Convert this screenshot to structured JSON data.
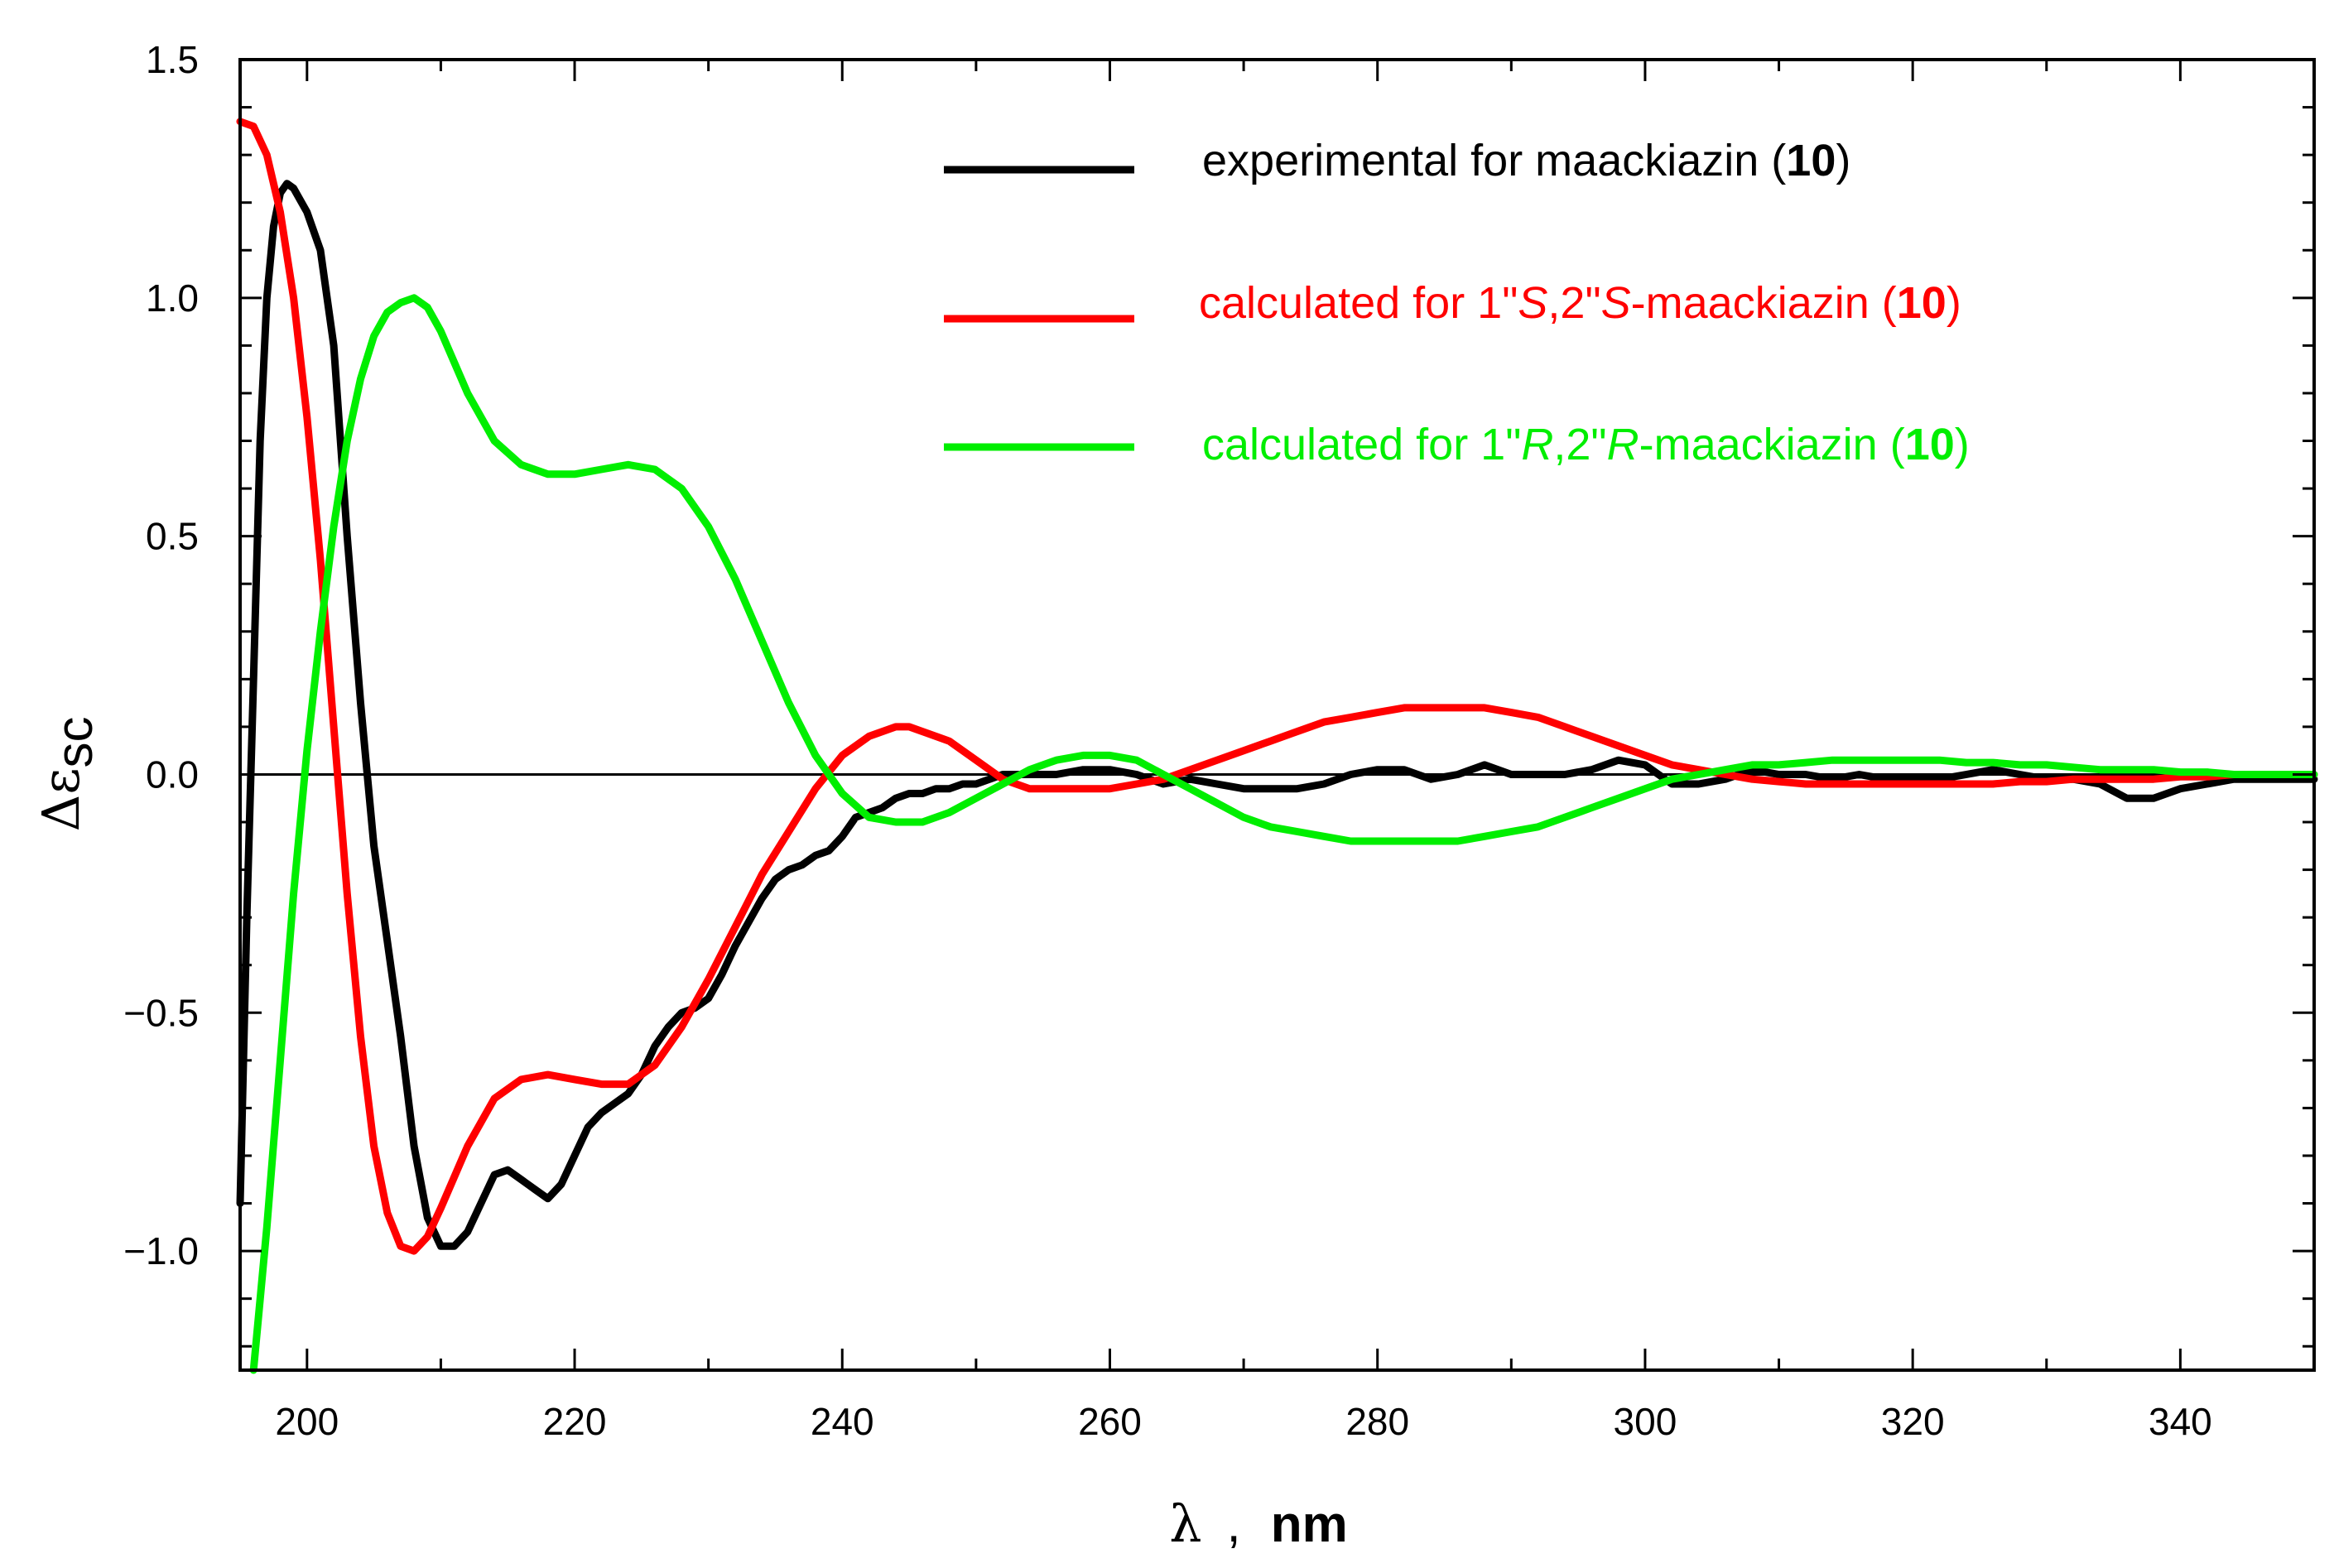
{
  "chart_data": {
    "type": "line",
    "title": "",
    "xlabel": {
      "symbol": "λ",
      "separator": ",",
      "unit": "nm"
    },
    "ylabel": {
      "symbol": "Δε",
      "subscript": "sc"
    },
    "xlim": [
      195,
      350
    ],
    "ylim": [
      -1.25,
      1.5
    ],
    "x_ticks": [
      200,
      220,
      240,
      260,
      280,
      300,
      320,
      340
    ],
    "x_tick_labels": [
      "200",
      "220",
      "240",
      "260",
      "280",
      "300",
      "320",
      "340"
    ],
    "y_ticks": [
      -1.0,
      -0.5,
      0.0,
      0.5,
      1.0,
      1.5
    ],
    "y_tick_labels": [
      "−1.0",
      "−0.5",
      "0.0",
      "0.5",
      "1.0",
      "1.5"
    ],
    "zero_line": true,
    "grid": false,
    "legend_position": "top-right",
    "series": [
      {
        "name": "experimental for maackiazin (10)",
        "legend": {
          "pre": "experimental for maackiazin (",
          "bold": "10",
          "post": ")"
        },
        "color": "#000000",
        "x": [
          195,
          195.5,
          196,
          196.5,
          197,
          197.5,
          198,
          198.5,
          199,
          200,
          201,
          202,
          203,
          204,
          205,
          206,
          207,
          208,
          209,
          210,
          211,
          212,
          213,
          214,
          215,
          216,
          217,
          218,
          219,
          220,
          221,
          222,
          223,
          224,
          225,
          226,
          227,
          228,
          229,
          230,
          231,
          232,
          233,
          234,
          235,
          236,
          237,
          238,
          239,
          240,
          241,
          242,
          243,
          244,
          245,
          246,
          247,
          248,
          249,
          250,
          252,
          254,
          256,
          258,
          260,
          262,
          264,
          266,
          268,
          270,
          272,
          274,
          276,
          278,
          280,
          282,
          284,
          286,
          288,
          290,
          292,
          294,
          296,
          298,
          300,
          302,
          304,
          306,
          308,
          310,
          312,
          314,
          316,
          318,
          320,
          322,
          324,
          326,
          328,
          330,
          332,
          334,
          336,
          338,
          340,
          342,
          344,
          346,
          348,
          350
        ],
        "y": [
          -0.9,
          -0.3,
          0.2,
          0.7,
          1.0,
          1.15,
          1.22,
          1.24,
          1.23,
          1.18,
          1.1,
          0.9,
          0.5,
          0.15,
          -0.15,
          -0.35,
          -0.55,
          -0.78,
          -0.93,
          -0.99,
          -0.99,
          -0.96,
          -0.9,
          -0.84,
          -0.83,
          -0.85,
          -0.87,
          -0.89,
          -0.86,
          -0.8,
          -0.74,
          -0.71,
          -0.69,
          -0.67,
          -0.63,
          -0.57,
          -0.53,
          -0.5,
          -0.49,
          -0.47,
          -0.42,
          -0.36,
          -0.31,
          -0.26,
          -0.22,
          -0.2,
          -0.19,
          -0.17,
          -0.16,
          -0.13,
          -0.09,
          -0.08,
          -0.07,
          -0.05,
          -0.04,
          -0.04,
          -0.03,
          -0.03,
          -0.02,
          -0.02,
          0.0,
          0.0,
          0.0,
          0.01,
          0.01,
          0.0,
          -0.02,
          -0.01,
          -0.02,
          -0.03,
          -0.03,
          -0.03,
          -0.02,
          0.0,
          0.01,
          0.01,
          -0.01,
          0.0,
          0.02,
          0.0,
          0.0,
          0.0,
          0.01,
          0.03,
          0.02,
          -0.02,
          -0.02,
          -0.01,
          0.01,
          0.0,
          0.0,
          -0.01,
          0.0,
          -0.01,
          -0.01,
          -0.01,
          0.0,
          0.01,
          0.0,
          -0.01,
          -0.01,
          -0.02,
          -0.05,
          -0.05,
          -0.03,
          -0.02,
          -0.01,
          -0.01,
          -0.01,
          -0.01
        ]
      },
      {
        "name": "calculated for 1\"S,2\"S-maackiazin (10)",
        "legend": {
          "p1": "calculated for 1\"",
          "i1": "S",
          "p2": ",2\"",
          "i2": "S",
          "p3": "-maackiazin (",
          "bold": "10",
          "post": ")"
        },
        "color": "#ff0000",
        "x": [
          195,
          196,
          197,
          198,
          199,
          200,
          201,
          202,
          203,
          204,
          205,
          206,
          207,
          208,
          209,
          210,
          212,
          214,
          216,
          218,
          220,
          222,
          224,
          226,
          228,
          230,
          232,
          234,
          236,
          238,
          240,
          242,
          244,
          245,
          246,
          248,
          250,
          252,
          254,
          256,
          258,
          260,
          262,
          264,
          266,
          268,
          270,
          272,
          274,
          276,
          278,
          280,
          282,
          284,
          286,
          288,
          290,
          292,
          294,
          296,
          298,
          300,
          302,
          304,
          306,
          308,
          310,
          312,
          314,
          316,
          318,
          320,
          322,
          324,
          326,
          328,
          330,
          332,
          334,
          336,
          338,
          340,
          342,
          344,
          346,
          348,
          350
        ],
        "y": [
          1.37,
          1.36,
          1.3,
          1.18,
          1.0,
          0.75,
          0.45,
          0.1,
          -0.25,
          -0.55,
          -0.78,
          -0.92,
          -0.99,
          -1.0,
          -0.97,
          -0.91,
          -0.78,
          -0.68,
          -0.64,
          -0.63,
          -0.64,
          -0.65,
          -0.65,
          -0.61,
          -0.53,
          -0.43,
          -0.32,
          -0.21,
          -0.12,
          -0.03,
          0.04,
          0.08,
          0.1,
          0.1,
          0.09,
          0.07,
          0.03,
          -0.01,
          -0.03,
          -0.03,
          -0.03,
          -0.03,
          -0.02,
          -0.01,
          0.01,
          0.03,
          0.05,
          0.07,
          0.09,
          0.11,
          0.12,
          0.13,
          0.14,
          0.14,
          0.14,
          0.14,
          0.13,
          0.12,
          0.1,
          0.08,
          0.06,
          0.04,
          0.02,
          0.01,
          0.0,
          -0.01,
          -0.015,
          -0.02,
          -0.02,
          -0.02,
          -0.02,
          -0.02,
          -0.02,
          -0.02,
          -0.02,
          -0.015,
          -0.015,
          -0.01,
          -0.01,
          -0.01,
          -0.01,
          -0.005,
          -0.005,
          0.0,
          0.0,
          0.0,
          0.0
        ]
      },
      {
        "name": "calculated for 1\"R,2\"R-maackiazin (10)",
        "legend": {
          "p1": "calculated for 1\"",
          "i1": "R",
          "p2": ",2\"",
          "i2": "R",
          "p3": "-maackiazin (",
          "bold": "10",
          "post": ")"
        },
        "color": "#00ee00",
        "x": [
          196,
          197,
          198,
          199,
          200,
          201,
          202,
          203,
          204,
          205,
          206,
          207,
          208,
          209,
          210,
          212,
          214,
          216,
          218,
          220,
          222,
          224,
          226,
          228,
          230,
          232,
          234,
          236,
          238,
          240,
          242,
          244,
          246,
          248,
          250,
          252,
          254,
          256,
          258,
          260,
          262,
          264,
          266,
          268,
          270,
          272,
          274,
          276,
          278,
          280,
          282,
          284,
          286,
          288,
          290,
          292,
          294,
          296,
          298,
          300,
          302,
          304,
          306,
          308,
          310,
          312,
          314,
          316,
          318,
          320,
          322,
          324,
          326,
          328,
          330,
          332,
          334,
          336,
          338,
          340,
          342,
          344,
          346,
          348,
          350
        ],
        "y": [
          -1.25,
          -0.95,
          -0.6,
          -0.25,
          0.05,
          0.3,
          0.52,
          0.7,
          0.83,
          0.92,
          0.97,
          0.99,
          1.0,
          0.98,
          0.93,
          0.8,
          0.7,
          0.65,
          0.63,
          0.63,
          0.64,
          0.65,
          0.64,
          0.6,
          0.52,
          0.41,
          0.28,
          0.15,
          0.04,
          -0.04,
          -0.09,
          -0.1,
          -0.1,
          -0.08,
          -0.05,
          -0.02,
          0.01,
          0.03,
          0.04,
          0.04,
          0.03,
          0.0,
          -0.03,
          -0.06,
          -0.09,
          -0.11,
          -0.12,
          -0.13,
          -0.14,
          -0.14,
          -0.14,
          -0.14,
          -0.14,
          -0.13,
          -0.12,
          -0.11,
          -0.09,
          -0.07,
          -0.05,
          -0.03,
          -0.01,
          0.0,
          0.01,
          0.02,
          0.02,
          0.025,
          0.03,
          0.03,
          0.03,
          0.03,
          0.03,
          0.025,
          0.025,
          0.02,
          0.02,
          0.015,
          0.01,
          0.01,
          0.01,
          0.005,
          0.005,
          0.0,
          0.0,
          0.0,
          0.0
        ]
      }
    ]
  }
}
